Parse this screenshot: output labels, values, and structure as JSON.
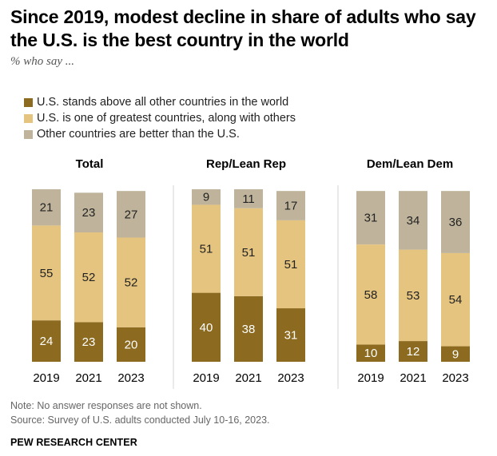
{
  "header": {
    "title": "Since 2019, modest decline in share of adults who say the U.S. is the best country in the world",
    "subtitle": "% who say ..."
  },
  "legend": [
    {
      "label": "U.S. stands above all other countries in the world",
      "color": "#8C6A1F"
    },
    {
      "label": "U.S. is one of greatest countries, along with others",
      "color": "#E5C47F"
    },
    {
      "label": "Other countries are better than the U.S.",
      "color": "#BFB49B"
    }
  ],
  "footer": {
    "note": "Note: No answer responses are not shown.",
    "source": "Source: Survey of U.S. adults conducted July 10-16, 2023.",
    "brand": "PEW RESEARCH CENTER"
  },
  "chart_data": {
    "type": "bar",
    "stacked": true,
    "categories": [
      "2019",
      "2021",
      "2023"
    ],
    "series_order": [
      "U.S. stands above all other countries in the world",
      "U.S. is one of greatest countries, along with others",
      "Other countries are better than the U.S."
    ],
    "panels": [
      {
        "title": "Total",
        "series": [
          {
            "name": "U.S. stands above all other countries in the world",
            "values": [
              24,
              23,
              20
            ]
          },
          {
            "name": "U.S. is one of greatest countries, along with others",
            "values": [
              55,
              52,
              52
            ]
          },
          {
            "name": "Other countries are better than the U.S.",
            "values": [
              21,
              23,
              27
            ]
          }
        ]
      },
      {
        "title": "Rep/Lean Rep",
        "series": [
          {
            "name": "U.S. stands above all other countries in the world",
            "values": [
              40,
              38,
              31
            ]
          },
          {
            "name": "U.S. is one of greatest countries, along with others",
            "values": [
              51,
              51,
              51
            ]
          },
          {
            "name": "Other countries are better than the U.S.",
            "values": [
              9,
              11,
              17
            ]
          }
        ]
      },
      {
        "title": "Dem/Lean Dem",
        "series": [
          {
            "name": "U.S. stands above all other countries in the world",
            "values": [
              10,
              12,
              9
            ]
          },
          {
            "name": "U.S. is one of greatest countries, along with others",
            "values": [
              58,
              53,
              54
            ]
          },
          {
            "name": "Other countries are better than the U.S.",
            "values": [
              31,
              34,
              36
            ]
          }
        ]
      }
    ],
    "colors": [
      "#8C6A1F",
      "#E5C47F",
      "#BFB49B"
    ],
    "label_colors": [
      "#ffffff",
      "#222222",
      "#222222"
    ],
    "ylim": [
      0,
      100
    ],
    "grid": false,
    "legend_position": "top-left"
  }
}
